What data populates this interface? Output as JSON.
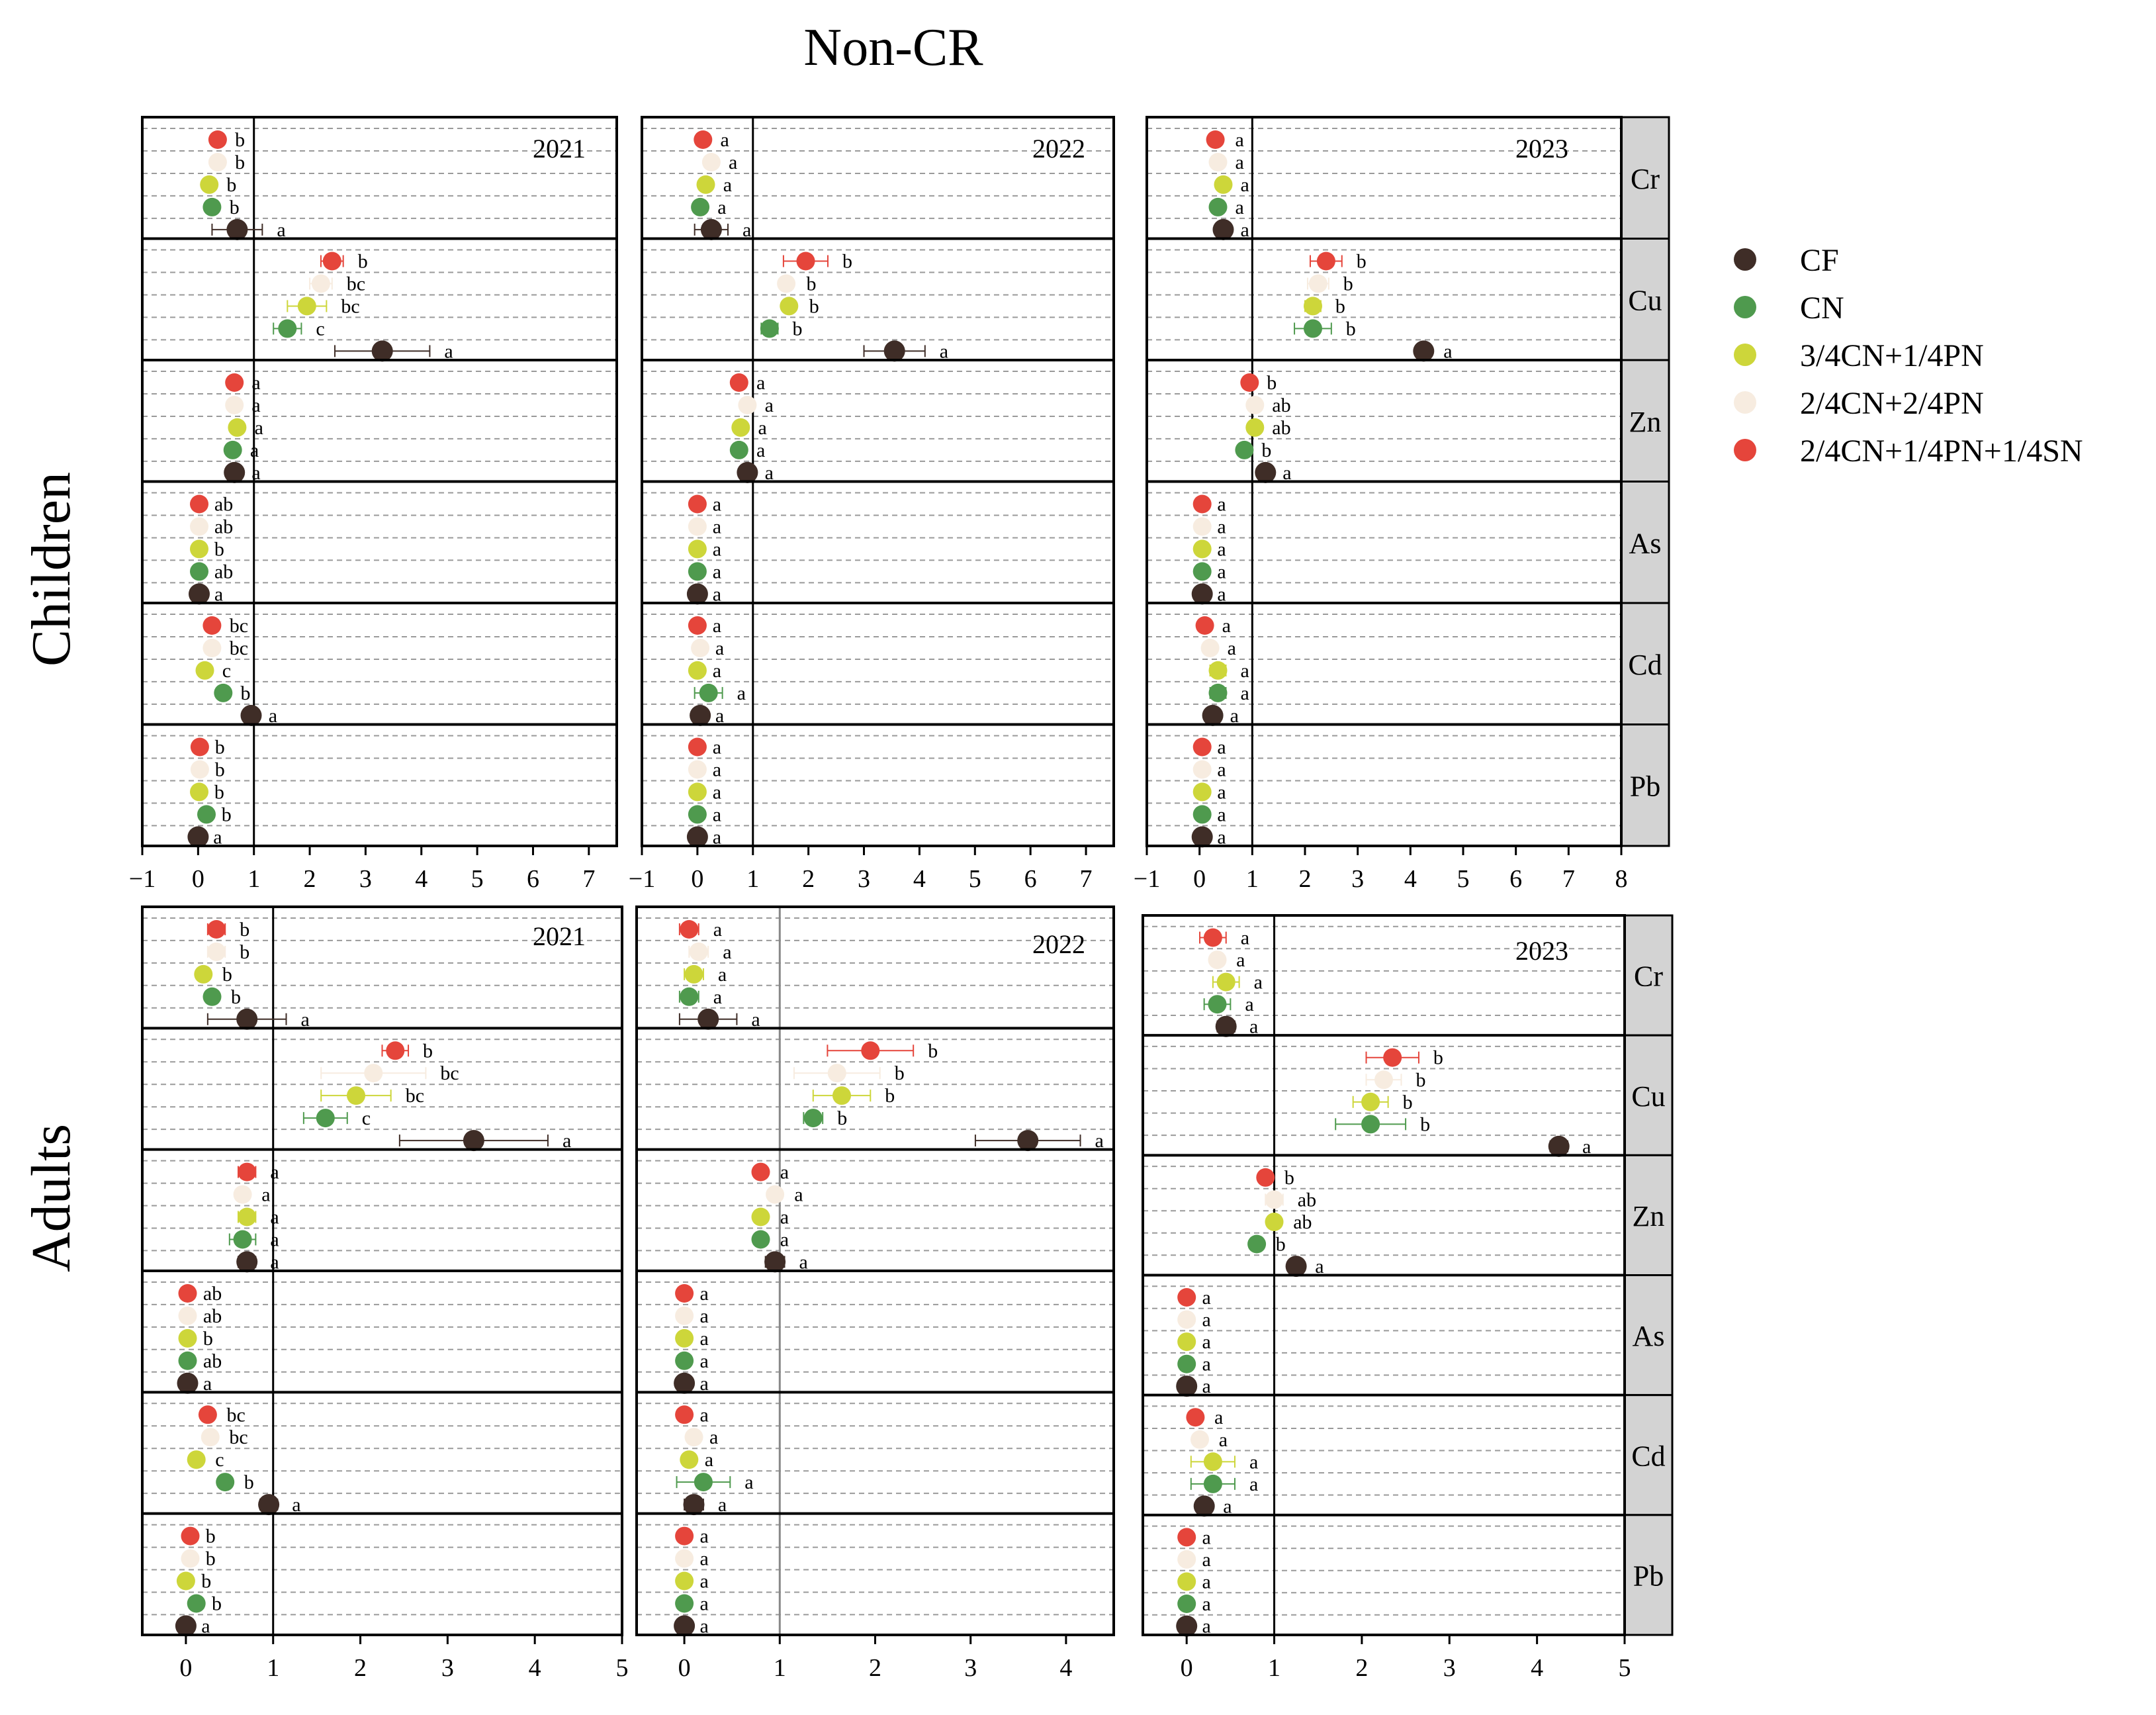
{
  "title": "Non-CR",
  "colors": {
    "CF": "#3f2d27",
    "CN": "#4f9a4e",
    "3/4CN+1/4PN": "#cdd63a",
    "2/4CN+2/4PN": "#f7ece0",
    "2/4CN+1/4PN+1/4SN": "#e5453b"
  },
  "chart_data": {
    "type": "scatter",
    "description_of_axes": "Dot plot with error bars; each panel row is a metal, each dot is a treatment",
    "row_labels": [
      "Children",
      "Adults"
    ],
    "metals": [
      "Cr",
      "Cu",
      "Zn",
      "As",
      "Cd",
      "Pb"
    ],
    "legend": [
      "CF",
      "CN",
      "3/4CN+1/4PN",
      "2/4CN+2/4PN",
      "2/4CN+1/4PN+1/4SN"
    ],
    "treatment_order_top_to_bottom": [
      "2/4CN+1/4PN+1/4SN",
      "2/4CN+2/4PN",
      "3/4CN+1/4PN",
      "CN",
      "CF"
    ],
    "reference_line": 1,
    "panels": [
      {
        "group": "Children",
        "year": "2021",
        "xlim": [
          -1,
          7.5
        ],
        "ticks": [
          "−1",
          "0",
          "1",
          "2",
          "3",
          "4",
          "5",
          "6",
          "7"
        ],
        "metals": {
          "Cr": {
            "values": [
              0.35,
              0.35,
              0.2,
              0.25,
              0.7
            ],
            "err": [
              0.05,
              0.05,
              0.05,
              0.05,
              0.45
            ],
            "letters": [
              "b",
              "b",
              "b",
              "b",
              "a"
            ]
          },
          "Cu": {
            "values": [
              2.4,
              2.2,
              1.95,
              1.6,
              3.3
            ],
            "err": [
              0.2,
              0.2,
              0.35,
              0.25,
              0.85
            ],
            "letters": [
              "b",
              "bc",
              "bc",
              "c",
              "a"
            ]
          },
          "Zn": {
            "values": [
              0.65,
              0.65,
              0.7,
              0.62,
              0.65
            ],
            "err": [
              0.05,
              0.05,
              0.05,
              0.05,
              0.05
            ],
            "letters": [
              "a",
              "a",
              "a",
              "a",
              "a"
            ]
          },
          "As": {
            "values": [
              0.02,
              0.02,
              0.02,
              0.02,
              0.02
            ],
            "err": [
              0.01,
              0.01,
              0.01,
              0.01,
              0.01
            ],
            "letters": [
              "ab",
              "ab",
              "b",
              "ab",
              "a"
            ]
          },
          "Cd": {
            "values": [
              0.25,
              0.25,
              0.12,
              0.45,
              0.95
            ],
            "err": [
              0.05,
              0.05,
              0.05,
              0.05,
              0.05
            ],
            "letters": [
              "bc",
              "bc",
              "c",
              "b",
              "a"
            ]
          },
          "Pb": {
            "values": [
              0.03,
              0.03,
              0.02,
              0.15,
              0.0
            ],
            "err": [
              0.01,
              0.01,
              0.01,
              0.01,
              0.01
            ],
            "letters": [
              "b",
              "b",
              "b",
              "b",
              "a"
            ]
          }
        }
      },
      {
        "group": "Children",
        "year": "2022",
        "xlim": [
          -1,
          7.5
        ],
        "ticks": [
          "−1",
          "0",
          "1",
          "2",
          "3",
          "4",
          "5",
          "6",
          "7"
        ],
        "metals": {
          "Cr": {
            "values": [
              0.1,
              0.25,
              0.15,
              0.05,
              0.25
            ],
            "err": [
              0.05,
              0.05,
              0.05,
              0.05,
              0.3
            ],
            "letters": [
              "a",
              "a",
              "a",
              "a",
              "a"
            ]
          },
          "Cu": {
            "values": [
              1.95,
              1.6,
              1.65,
              1.3,
              3.55
            ],
            "err": [
              0.4,
              0.1,
              0.1,
              0.15,
              0.55
            ],
            "letters": [
              "b",
              "b",
              "b",
              "b",
              "a"
            ]
          },
          "Zn": {
            "values": [
              0.75,
              0.9,
              0.78,
              0.75,
              0.9
            ],
            "err": [
              0.05,
              0.05,
              0.05,
              0.05,
              0.05
            ],
            "letters": [
              "a",
              "a",
              "a",
              "a",
              "a"
            ]
          },
          "As": {
            "values": [
              0.0,
              0.0,
              0.0,
              0.0,
              0.0
            ],
            "err": [
              0.01,
              0.01,
              0.01,
              0.01,
              0.01
            ],
            "letters": [
              "a",
              "a",
              "a",
              "a",
              "a"
            ]
          },
          "Cd": {
            "values": [
              0.0,
              0.05,
              0.0,
              0.2,
              0.05
            ],
            "err": [
              0.01,
              0.01,
              0.01,
              0.25,
              0.01
            ],
            "letters": [
              "a",
              "a",
              "a",
              "a",
              "a"
            ]
          },
          "Pb": {
            "values": [
              0.0,
              0.0,
              0.0,
              0.0,
              0.0
            ],
            "err": [
              0.01,
              0.01,
              0.01,
              0.01,
              0.01
            ],
            "letters": [
              "a",
              "a",
              "a",
              "a",
              "a"
            ]
          }
        }
      },
      {
        "group": "Children",
        "year": "2023",
        "xlim": [
          -1,
          8
        ],
        "ticks": [
          "−1",
          "0",
          "1",
          "2",
          "3",
          "4",
          "5",
          "6",
          "7",
          "8"
        ],
        "metals": {
          "Cr": {
            "values": [
              0.3,
              0.35,
              0.45,
              0.35,
              0.45
            ],
            "err": [
              0.1,
              0.05,
              0.05,
              0.05,
              0.05
            ],
            "letters": [
              "a",
              "a",
              "a",
              "a",
              "a"
            ]
          },
          "Cu": {
            "values": [
              2.4,
              2.25,
              2.15,
              2.15,
              4.25
            ],
            "err": [
              0.3,
              0.2,
              0.15,
              0.35,
              0.1
            ],
            "letters": [
              "b",
              "b",
              "b",
              "b",
              "a"
            ]
          },
          "Zn": {
            "values": [
              0.95,
              1.05,
              1.05,
              0.85,
              1.25
            ],
            "err": [
              0.05,
              0.05,
              0.05,
              0.05,
              0.05
            ],
            "letters": [
              "b",
              "ab",
              "ab",
              "b",
              "a"
            ]
          },
          "As": {
            "values": [
              0.05,
              0.05,
              0.05,
              0.05,
              0.05
            ],
            "err": [
              0.01,
              0.01,
              0.01,
              0.01,
              0.01
            ],
            "letters": [
              "a",
              "a",
              "a",
              "a",
              "a"
            ]
          },
          "Cd": {
            "values": [
              0.1,
              0.2,
              0.35,
              0.35,
              0.25
            ],
            "err": [
              0.05,
              0.05,
              0.15,
              0.15,
              0.05
            ],
            "letters": [
              "a",
              "a",
              "a",
              "a",
              "a"
            ]
          },
          "Pb": {
            "values": [
              0.05,
              0.05,
              0.05,
              0.05,
              0.05
            ],
            "err": [
              0.01,
              0.01,
              0.01,
              0.01,
              0.01
            ],
            "letters": [
              "a",
              "a",
              "a",
              "a",
              "a"
            ]
          }
        }
      },
      {
        "group": "Adults",
        "year": "2021",
        "xlim": [
          -0.5,
          5
        ],
        "ticks": [
          "0",
          "1",
          "2",
          "3",
          "4",
          "5"
        ],
        "metals": {
          "Cr": {
            "values": [
              0.35,
              0.35,
              0.2,
              0.3,
              0.7
            ],
            "err": [
              0.1,
              0.1,
              0.05,
              0.05,
              0.45
            ],
            "letters": [
              "b",
              "b",
              "b",
              "b",
              "a"
            ]
          },
          "Cu": {
            "values": [
              2.4,
              2.15,
              1.95,
              1.6,
              3.3
            ],
            "err": [
              0.15,
              0.6,
              0.4,
              0.25,
              0.85
            ],
            "letters": [
              "b",
              "bc",
              "bc",
              "c",
              "a"
            ]
          },
          "Zn": {
            "values": [
              0.7,
              0.65,
              0.7,
              0.65,
              0.7
            ],
            "err": [
              0.1,
              0.05,
              0.1,
              0.15,
              0.1
            ],
            "letters": [
              "a",
              "a",
              "a",
              "a",
              "a"
            ]
          },
          "As": {
            "values": [
              0.02,
              0.02,
              0.02,
              0.02,
              0.02
            ],
            "err": [
              0.01,
              0.01,
              0.01,
              0.01,
              0.01
            ],
            "letters": [
              "ab",
              "ab",
              "b",
              "ab",
              "a"
            ]
          },
          "Cd": {
            "values": [
              0.25,
              0.28,
              0.12,
              0.45,
              0.95
            ],
            "err": [
              0.05,
              0.05,
              0.05,
              0.05,
              0.1
            ],
            "letters": [
              "bc",
              "bc",
              "c",
              "b",
              "a"
            ]
          },
          "Pb": {
            "values": [
              0.05,
              0.05,
              0.0,
              0.12,
              0.0
            ],
            "err": [
              0.01,
              0.01,
              0.01,
              0.01,
              0.01
            ],
            "letters": [
              "b",
              "b",
              "b",
              "b",
              "a"
            ]
          }
        }
      },
      {
        "group": "Adults",
        "year": "2022",
        "xlim": [
          -0.5,
          4.5
        ],
        "ticks": [
          "0",
          "1",
          "2",
          "3",
          "4"
        ],
        "metals": {
          "Cr": {
            "values": [
              0.05,
              0.15,
              0.1,
              0.05,
              0.25
            ],
            "err": [
              0.1,
              0.1,
              0.1,
              0.1,
              0.3
            ],
            "letters": [
              "a",
              "a",
              "a",
              "a",
              "a"
            ]
          },
          "Cu": {
            "values": [
              1.95,
              1.6,
              1.65,
              1.35,
              3.6
            ],
            "err": [
              0.45,
              0.45,
              0.3,
              0.1,
              0.55
            ],
            "letters": [
              "b",
              "b",
              "b",
              "b",
              "a"
            ]
          },
          "Zn": {
            "values": [
              0.8,
              0.95,
              0.8,
              0.8,
              0.95
            ],
            "err": [
              0.05,
              0.05,
              0.05,
              0.05,
              0.1
            ],
            "letters": [
              "a",
              "a",
              "a",
              "a",
              "a"
            ]
          },
          "As": {
            "values": [
              0.0,
              0.0,
              0.0,
              0.0,
              0.0
            ],
            "err": [
              0.01,
              0.01,
              0.01,
              0.01,
              0.01
            ],
            "letters": [
              "a",
              "a",
              "a",
              "a",
              "a"
            ]
          },
          "Cd": {
            "values": [
              0.0,
              0.1,
              0.05,
              0.2,
              0.1
            ],
            "err": [
              0.01,
              0.01,
              0.01,
              0.28,
              0.1
            ],
            "letters": [
              "a",
              "a",
              "a",
              "a",
              "a"
            ]
          },
          "Pb": {
            "values": [
              0.0,
              0.0,
              0.0,
              0.0,
              0.0
            ],
            "err": [
              0.01,
              0.01,
              0.01,
              0.01,
              0.01
            ],
            "letters": [
              "a",
              "a",
              "a",
              "a",
              "a"
            ]
          }
        }
      },
      {
        "group": "Adults",
        "year": "2023",
        "xlim": [
          -0.5,
          5
        ],
        "ticks": [
          "0",
          "1",
          "2",
          "3",
          "4",
          "5"
        ],
        "metals": {
          "Cr": {
            "values": [
              0.3,
              0.35,
              0.45,
              0.35,
              0.45
            ],
            "err": [
              0.15,
              0.05,
              0.15,
              0.15,
              0.1
            ],
            "letters": [
              "a",
              "a",
              "a",
              "a",
              "a"
            ]
          },
          "Cu": {
            "values": [
              2.35,
              2.25,
              2.1,
              2.1,
              4.25
            ],
            "err": [
              0.3,
              0.2,
              0.2,
              0.4,
              0.1
            ],
            "letters": [
              "b",
              "b",
              "b",
              "b",
              "a"
            ]
          },
          "Zn": {
            "values": [
              0.9,
              1.0,
              1.0,
              0.8,
              1.25
            ],
            "err": [
              0.05,
              0.1,
              0.05,
              0.05,
              0.05
            ],
            "letters": [
              "b",
              "ab",
              "ab",
              "b",
              "a"
            ]
          },
          "As": {
            "values": [
              0.0,
              0.0,
              0.0,
              0.0,
              0.0
            ],
            "err": [
              0.01,
              0.01,
              0.01,
              0.01,
              0.01
            ],
            "letters": [
              "a",
              "a",
              "a",
              "a",
              "a"
            ]
          },
          "Cd": {
            "values": [
              0.1,
              0.15,
              0.3,
              0.3,
              0.2
            ],
            "err": [
              0.05,
              0.05,
              0.25,
              0.25,
              0.05
            ],
            "letters": [
              "a",
              "a",
              "a",
              "a",
              "a"
            ]
          },
          "Pb": {
            "values": [
              0.0,
              0.0,
              0.0,
              0.0,
              0.0
            ],
            "err": [
              0.01,
              0.01,
              0.01,
              0.01,
              0.01
            ],
            "letters": [
              "a",
              "a",
              "a",
              "a",
              "a"
            ]
          }
        }
      }
    ]
  }
}
